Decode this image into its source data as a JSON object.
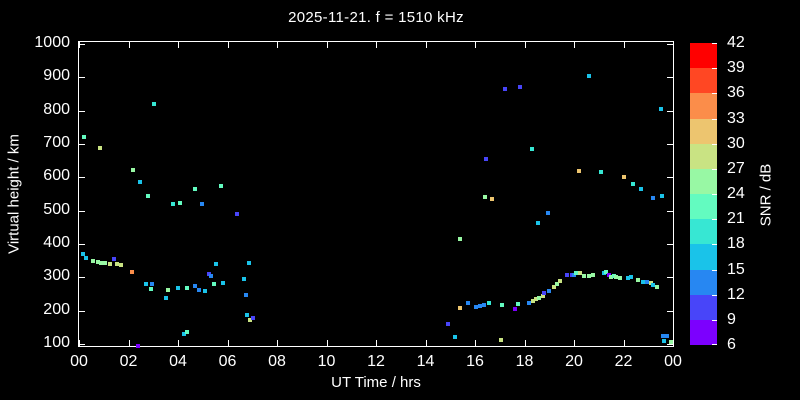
{
  "title": "2025-11-21. f = 1510 kHz",
  "chart_data": {
    "type": "scatter",
    "title": "2025-11-21. f = 1510 kHz",
    "xlabel": "UT Time / hrs",
    "ylabel": "Virtual height / km",
    "background_color": "#000000",
    "axis_color": "#ffffff",
    "grid": false,
    "xlim": [
      0,
      24
    ],
    "ylim": [
      100,
      1000
    ],
    "x_ticks": {
      "values": [
        0,
        2,
        4,
        6,
        8,
        10,
        12,
        14,
        16,
        18,
        20,
        22,
        24
      ],
      "labels": [
        "00",
        "02",
        "04",
        "06",
        "08",
        "10",
        "12",
        "14",
        "16",
        "18",
        "20",
        "22",
        "00"
      ]
    },
    "y_ticks": {
      "values": [
        100,
        200,
        300,
        400,
        500,
        600,
        700,
        800,
        900,
        1000
      ],
      "labels": [
        "100",
        "200",
        "300",
        "400",
        "500",
        "600",
        "700",
        "800",
        "900",
        "1000"
      ]
    },
    "colorbar": {
      "label": "SNR / dB",
      "min": 6,
      "max": 42,
      "step": 3,
      "tick_labels": [
        "6",
        "9",
        "12",
        "15",
        "18",
        "21",
        "24",
        "27",
        "30",
        "33",
        "36",
        "39",
        "42"
      ],
      "colors_low_to_high": [
        "#7c00fe",
        "#4845f9",
        "#2787f2",
        "#1ac3e9",
        "#37e7d3",
        "#63fbc0",
        "#98f8a4",
        "#c9e383",
        "#edc56f",
        "#fb8d4a",
        "#ff4723",
        "#ff0000"
      ],
      "position": "right"
    },
    "points_format": [
      "ut_hours",
      "virtual_height_km",
      "snr_db"
    ],
    "points": [
      [
        0.15,
        370,
        16
      ],
      [
        0.2,
        722,
        22
      ],
      [
        0.3,
        358,
        16
      ],
      [
        0.55,
        349,
        25
      ],
      [
        0.75,
        346,
        25
      ],
      [
        0.85,
        688,
        27
      ],
      [
        0.9,
        343,
        25
      ],
      [
        1.05,
        342,
        25
      ],
      [
        1.25,
        340,
        28
      ],
      [
        1.4,
        355,
        10
      ],
      [
        1.55,
        340,
        28
      ],
      [
        1.7,
        338,
        28
      ],
      [
        2.15,
        316,
        34
      ],
      [
        2.2,
        622,
        25
      ],
      [
        2.4,
        95,
        8
      ],
      [
        2.45,
        586,
        16
      ],
      [
        2.7,
        280,
        16
      ],
      [
        2.8,
        544,
        22
      ],
      [
        2.9,
        265,
        22
      ],
      [
        2.95,
        280,
        13
      ],
      [
        3.05,
        820,
        19
      ],
      [
        3.5,
        238,
        16
      ],
      [
        3.6,
        262,
        25
      ],
      [
        3.8,
        520,
        19
      ],
      [
        4.0,
        268,
        16
      ],
      [
        4.1,
        523,
        22
      ],
      [
        4.25,
        130,
        16
      ],
      [
        4.35,
        136,
        22
      ],
      [
        4.35,
        268,
        22
      ],
      [
        4.7,
        274,
        13
      ],
      [
        4.7,
        565,
        22
      ],
      [
        4.85,
        262,
        13
      ],
      [
        4.95,
        520,
        13
      ],
      [
        5.1,
        259,
        16
      ],
      [
        5.25,
        310,
        10
      ],
      [
        5.35,
        304,
        13
      ],
      [
        5.45,
        280,
        22
      ],
      [
        5.55,
        340,
        16
      ],
      [
        5.75,
        574,
        22
      ],
      [
        5.8,
        284,
        16
      ],
      [
        6.4,
        490,
        10
      ],
      [
        6.65,
        295,
        16
      ],
      [
        6.75,
        247,
        13
      ],
      [
        6.8,
        186,
        16
      ],
      [
        6.85,
        343,
        16
      ],
      [
        6.9,
        172,
        28
      ],
      [
        7.05,
        178,
        10
      ],
      [
        14.9,
        160,
        10
      ],
      [
        15.2,
        121,
        16
      ],
      [
        15.4,
        208,
        31
      ],
      [
        15.4,
        415,
        25
      ],
      [
        15.7,
        222,
        14
      ],
      [
        16.05,
        211,
        13
      ],
      [
        16.2,
        214,
        13
      ],
      [
        16.35,
        217,
        13
      ],
      [
        16.4,
        541,
        24
      ],
      [
        16.45,
        655,
        10
      ],
      [
        16.55,
        223,
        20
      ],
      [
        16.7,
        536,
        31
      ],
      [
        17.05,
        112,
        27
      ],
      [
        17.1,
        217,
        21
      ],
      [
        17.2,
        865,
        10
      ],
      [
        17.6,
        205,
        8
      ],
      [
        17.75,
        220,
        22
      ],
      [
        17.8,
        871,
        10
      ],
      [
        18.2,
        223,
        13
      ],
      [
        18.3,
        685,
        19
      ],
      [
        18.35,
        229,
        28
      ],
      [
        18.45,
        235,
        28
      ],
      [
        18.55,
        463,
        16
      ],
      [
        18.6,
        238,
        25
      ],
      [
        18.75,
        244,
        28
      ],
      [
        18.8,
        253,
        9
      ],
      [
        18.95,
        493,
        13
      ],
      [
        19.0,
        259,
        13
      ],
      [
        19.2,
        271,
        28
      ],
      [
        19.3,
        280,
        25
      ],
      [
        19.45,
        289,
        28
      ],
      [
        19.7,
        307,
        9
      ],
      [
        19.9,
        307,
        10
      ],
      [
        20.0,
        307,
        13
      ],
      [
        20.1,
        313,
        22
      ],
      [
        20.2,
        619,
        31
      ],
      [
        20.25,
        313,
        28
      ],
      [
        20.4,
        304,
        25
      ],
      [
        20.6,
        304,
        25
      ],
      [
        20.6,
        904,
        16
      ],
      [
        20.75,
        307,
        25
      ],
      [
        21.1,
        616,
        19
      ],
      [
        21.2,
        313,
        16
      ],
      [
        21.3,
        316,
        22
      ],
      [
        21.4,
        307,
        8
      ],
      [
        21.5,
        301,
        25
      ],
      [
        21.6,
        304,
        22
      ],
      [
        21.7,
        301,
        25
      ],
      [
        21.85,
        298,
        25
      ],
      [
        22.0,
        601,
        31
      ],
      [
        22.2,
        298,
        16
      ],
      [
        22.3,
        301,
        16
      ],
      [
        22.4,
        580,
        20
      ],
      [
        22.6,
        292,
        25
      ],
      [
        22.7,
        565,
        16
      ],
      [
        22.8,
        286,
        16
      ],
      [
        22.95,
        286,
        14
      ],
      [
        23.1,
        283,
        28
      ],
      [
        23.2,
        277,
        16
      ],
      [
        23.2,
        538,
        13
      ],
      [
        23.35,
        271,
        25
      ],
      [
        23.5,
        805,
        17
      ],
      [
        23.55,
        544,
        16
      ],
      [
        23.6,
        124,
        13
      ],
      [
        23.65,
        109,
        16
      ],
      [
        23.75,
        124,
        13
      ],
      [
        23.9,
        106,
        25
      ]
    ]
  }
}
